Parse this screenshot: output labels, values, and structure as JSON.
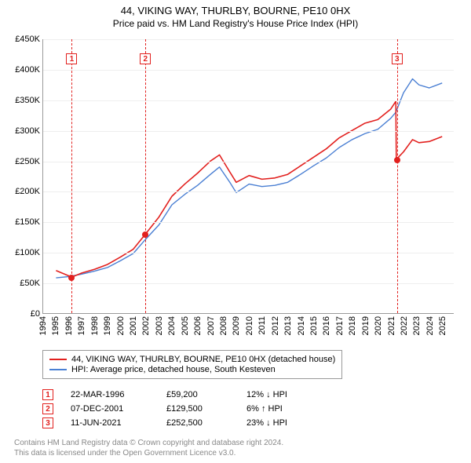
{
  "title": {
    "line1": "44, VIKING WAY, THURLBY, BOURNE, PE10 0HX",
    "line2": "Price paid vs. HM Land Registry's House Price Index (HPI)"
  },
  "chart": {
    "type": "line",
    "xlim": [
      1994,
      2025.9
    ],
    "ylim": [
      0,
      450000
    ],
    "ytick_step": 50000,
    "yticks": [
      {
        "v": 0,
        "label": "£0"
      },
      {
        "v": 50000,
        "label": "£50K"
      },
      {
        "v": 100000,
        "label": "£100K"
      },
      {
        "v": 150000,
        "label": "£150K"
      },
      {
        "v": 200000,
        "label": "£200K"
      },
      {
        "v": 250000,
        "label": "£250K"
      },
      {
        "v": 300000,
        "label": "£300K"
      },
      {
        "v": 350000,
        "label": "£350K"
      },
      {
        "v": 400000,
        "label": "£400K"
      },
      {
        "v": 450000,
        "label": "£450K"
      }
    ],
    "xticks": [
      1994,
      1995,
      1996,
      1997,
      1998,
      1999,
      2000,
      2001,
      2002,
      2003,
      2004,
      2005,
      2006,
      2007,
      2008,
      2009,
      2010,
      2011,
      2012,
      2013,
      2014,
      2015,
      2016,
      2017,
      2018,
      2019,
      2020,
      2021,
      2022,
      2023,
      2024,
      2025
    ],
    "background_color": "#ffffff",
    "grid_color": "#eeeeee",
    "axis_color": "#999999",
    "series": [
      {
        "name": "hpi",
        "label": "HPI: Average price, detached house, South Kesteven",
        "color": "#4a7fd3",
        "width": 1.4,
        "points": [
          [
            1995.0,
            58000
          ],
          [
            1996.0,
            60000
          ],
          [
            1997.0,
            64000
          ],
          [
            1998.0,
            69000
          ],
          [
            1999.0,
            75000
          ],
          [
            2000.0,
            86000
          ],
          [
            2001.0,
            98000
          ],
          [
            2001.9,
            120000
          ],
          [
            2003.0,
            145000
          ],
          [
            2004.0,
            178000
          ],
          [
            2005.0,
            195000
          ],
          [
            2006.0,
            210000
          ],
          [
            2007.0,
            228000
          ],
          [
            2007.7,
            240000
          ],
          [
            2008.5,
            215000
          ],
          [
            2009.0,
            198000
          ],
          [
            2010.0,
            212000
          ],
          [
            2011.0,
            208000
          ],
          [
            2012.0,
            210000
          ],
          [
            2013.0,
            215000
          ],
          [
            2014.0,
            228000
          ],
          [
            2015.0,
            242000
          ],
          [
            2016.0,
            255000
          ],
          [
            2017.0,
            272000
          ],
          [
            2018.0,
            285000
          ],
          [
            2019.0,
            295000
          ],
          [
            2020.0,
            302000
          ],
          [
            2021.0,
            320000
          ],
          [
            2021.4,
            330000
          ],
          [
            2022.0,
            362000
          ],
          [
            2022.7,
            385000
          ],
          [
            2023.2,
            375000
          ],
          [
            2024.0,
            370000
          ],
          [
            2025.0,
            378000
          ]
        ]
      },
      {
        "name": "property",
        "label": "44, VIKING WAY, THURLBY, BOURNE, PE10 0HX (detached house)",
        "color": "#e2201e",
        "width": 1.6,
        "points": [
          [
            1995.0,
            70000
          ],
          [
            1996.22,
            59200
          ],
          [
            1997.0,
            66000
          ],
          [
            1998.0,
            72000
          ],
          [
            1999.0,
            80000
          ],
          [
            2000.0,
            92000
          ],
          [
            2001.0,
            105000
          ],
          [
            2001.93,
            129500
          ],
          [
            2003.0,
            158000
          ],
          [
            2004.0,
            192000
          ],
          [
            2005.0,
            212000
          ],
          [
            2006.0,
            230000
          ],
          [
            2007.0,
            250000
          ],
          [
            2007.7,
            260000
          ],
          [
            2008.5,
            232000
          ],
          [
            2009.0,
            215000
          ],
          [
            2010.0,
            226000
          ],
          [
            2011.0,
            220000
          ],
          [
            2012.0,
            222000
          ],
          [
            2013.0,
            228000
          ],
          [
            2014.0,
            242000
          ],
          [
            2015.0,
            256000
          ],
          [
            2016.0,
            270000
          ],
          [
            2017.0,
            288000
          ],
          [
            2018.0,
            300000
          ],
          [
            2019.0,
            312000
          ],
          [
            2020.0,
            318000
          ],
          [
            2021.0,
            335000
          ],
          [
            2021.4,
            348000
          ],
          [
            2021.44,
            252500
          ],
          [
            2022.0,
            265000
          ],
          [
            2022.7,
            285000
          ],
          [
            2023.2,
            280000
          ],
          [
            2024.0,
            282000
          ],
          [
            2025.0,
            290000
          ]
        ]
      }
    ],
    "markers": [
      {
        "idx": "1",
        "x": 1996.22,
        "y": 59200,
        "color": "#e2201e"
      },
      {
        "idx": "2",
        "x": 2001.93,
        "y": 129500,
        "color": "#e2201e"
      },
      {
        "idx": "3",
        "x": 2021.44,
        "y": 252500,
        "color": "#e2201e"
      }
    ],
    "marker_box_top_offset": 18
  },
  "legend": {
    "rows": [
      {
        "color": "#e2201e",
        "label": "44, VIKING WAY, THURLBY, BOURNE, PE10 0HX (detached house)"
      },
      {
        "color": "#4a7fd3",
        "label": "HPI: Average price, detached house, South Kesteven"
      }
    ]
  },
  "sales": [
    {
      "idx": "1",
      "color": "#e2201e",
      "date": "22-MAR-1996",
      "price": "£59,200",
      "diff": "12% ↓ HPI"
    },
    {
      "idx": "2",
      "color": "#e2201e",
      "date": "07-DEC-2001",
      "price": "£129,500",
      "diff": "6% ↑ HPI"
    },
    {
      "idx": "3",
      "color": "#e2201e",
      "date": "11-JUN-2021",
      "price": "£252,500",
      "diff": "23% ↓ HPI"
    }
  ],
  "attribution": {
    "line1": "Contains HM Land Registry data © Crown copyright and database right 2024.",
    "line2": "This data is licensed under the Open Government Licence v3.0."
  }
}
